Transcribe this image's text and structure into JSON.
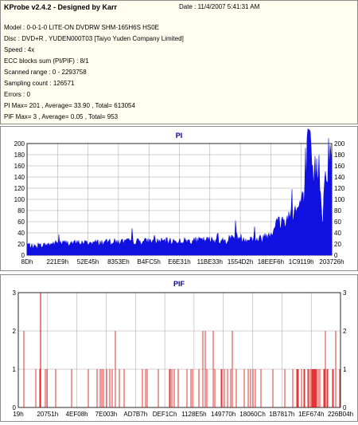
{
  "header": {
    "title": "KProbe v2.4.2 - Designed by Karr",
    "date": "Date : 11/4/2007 5:41:31 AM",
    "lines": [
      "Model : 0-0-1-0 LITE-ON DVDRW SHM-165H6S HS0E",
      "Disc : DVD+R , YUDEN000T03 [Taiyo Yuden Company Limited]",
      "Speed : 4x",
      "ECC blocks sum (PI/PIF) : 8/1",
      "Scanned range : 0 - 2293758",
      "Sampling count : 126571",
      "Errors : 0",
      "PI Max= 201 , Average= 33.90 , Total= 613054",
      "PIF Max= 3 , Average= 0.05 , Total= 953"
    ]
  },
  "colors": {
    "pi_fill": "#1010e0",
    "pif_bar": "#e00000",
    "grid": "#a0a0a0",
    "title": "#0000a0"
  },
  "chart_data": [
    {
      "type": "area",
      "title": "PI",
      "ylim": [
        0,
        200
      ],
      "yticks": [
        0,
        20,
        40,
        60,
        80,
        100,
        120,
        140,
        160,
        180,
        200
      ],
      "xtick_labels": [
        "8Dh",
        "221E9h",
        "52E45h",
        "8353Eh",
        "B4FC5h",
        "E6E31h",
        "11BE33h",
        "1554D2h",
        "18EEF6h",
        "1C9119h",
        "203726h"
      ],
      "profile_x": [
        0,
        0.02,
        0.1,
        0.2,
        0.3,
        0.4,
        0.5,
        0.6,
        0.65,
        0.68,
        0.72,
        0.74,
        0.76,
        0.8,
        0.82,
        0.85,
        0.87,
        0.89,
        0.9,
        0.91,
        0.92,
        0.93,
        0.94,
        0.95,
        0.96,
        0.97,
        0.98,
        0.99,
        1.0
      ],
      "profile_y": [
        20,
        15,
        22,
        22,
        24,
        25,
        25,
        27,
        25,
        35,
        28,
        30,
        28,
        40,
        58,
        62,
        78,
        82,
        100,
        90,
        190,
        180,
        130,
        160,
        155,
        60,
        160,
        175,
        170
      ],
      "max": 201
    },
    {
      "type": "bar",
      "title": "PIF",
      "ylim": [
        0,
        3
      ],
      "yticks": [
        0,
        1,
        2,
        3
      ],
      "xtick_labels": [
        "19h",
        "20751h",
        "4EF08h",
        "7E003h",
        "AD7B7h",
        "DEF1Ch",
        "1128E5h",
        "149770h",
        "18060Ch",
        "1B7817h",
        "1EF674h",
        "226B04h"
      ],
      "max": 3
    }
  ]
}
